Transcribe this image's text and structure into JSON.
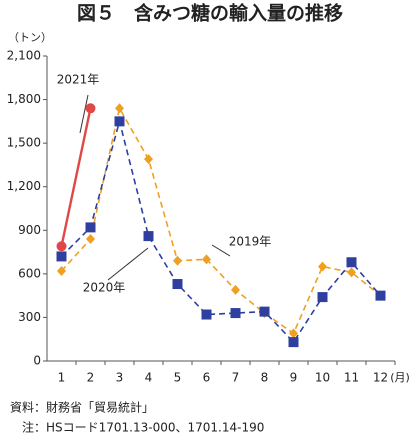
{
  "chart_data": {
    "type": "line",
    "title": "図５　含みつ糖の輸入量の推移",
    "y_unit": "（トン）",
    "x_unit": "(月)",
    "categories": [
      "1",
      "2",
      "3",
      "4",
      "5",
      "6",
      "7",
      "8",
      "9",
      "10",
      "11",
      "12"
    ],
    "series": [
      {
        "name": "2019年",
        "color": "#f0a020",
        "dash": true,
        "marker": "diamond",
        "values": [
          620,
          840,
          1740,
          1390,
          690,
          700,
          490,
          330,
          190,
          650,
          610,
          450
        ]
      },
      {
        "name": "2020年",
        "color": "#2f3f9f",
        "dash": true,
        "marker": "square",
        "values": [
          720,
          920,
          1650,
          860,
          530,
          320,
          330,
          340,
          130,
          440,
          680,
          450
        ]
      },
      {
        "name": "2021年",
        "color": "#e04848",
        "dash": false,
        "marker": "circle",
        "values": [
          790,
          1740,
          null,
          null,
          null,
          null,
          null,
          null,
          null,
          null,
          null,
          null
        ]
      }
    ],
    "ylim": [
      0,
      2100
    ],
    "yticks": [
      0,
      300,
      600,
      900,
      {
        "value": 1200,
        "label": "1,200"
      },
      {
        "value": 1500,
        "label": "1,500"
      },
      {
        "value": 1800,
        "label": "1,800"
      },
      {
        "value": 2100,
        "label": "2,100"
      }
    ],
    "grid": false,
    "notes": [
      "資料：財務省「貿易統計」",
      "　注：HSコード1701.13-000、1701.14-190"
    ]
  }
}
